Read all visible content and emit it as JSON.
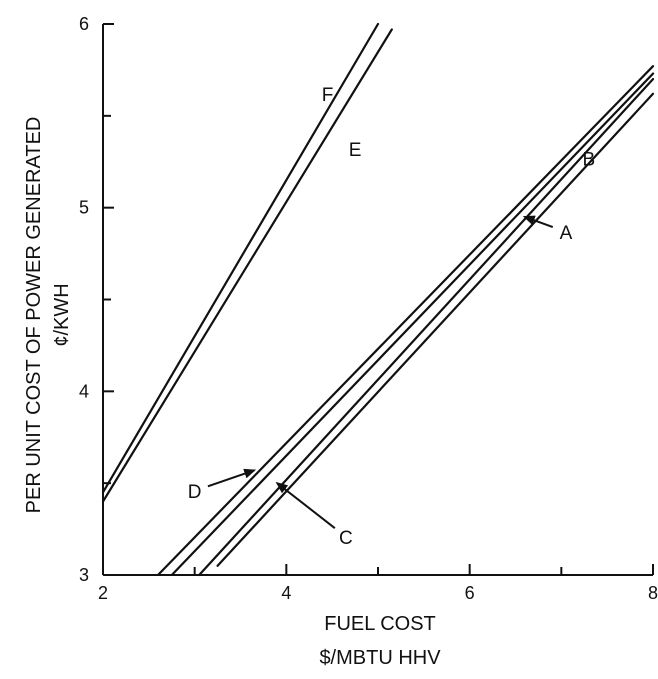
{
  "chart_data": {
    "type": "line",
    "xlabel": [
      "FUEL COST",
      "$/MBTU HHV"
    ],
    "ylabel": [
      "PER UNIT COST OF POWER GENERATED",
      "¢/KWH"
    ],
    "xlim": [
      2,
      8
    ],
    "ylim": [
      3,
      6
    ],
    "xticks": [
      2,
      4,
      6,
      8
    ],
    "yticks": [
      3,
      4,
      5,
      6
    ],
    "grid": false,
    "series": [
      {
        "name": "F",
        "x": [
          2.0,
          5.0
        ],
        "y": [
          3.45,
          6.0
        ]
      },
      {
        "name": "E",
        "x": [
          2.0,
          5.15
        ],
        "y": [
          3.4,
          5.97
        ]
      },
      {
        "name": "D",
        "x": [
          2.6,
          8.0
        ],
        "y": [
          3.0,
          5.77
        ]
      },
      {
        "name": "C",
        "x": [
          2.75,
          8.0
        ],
        "y": [
          3.0,
          5.73
        ]
      },
      {
        "name": "A",
        "x": [
          3.05,
          8.0
        ],
        "y": [
          3.0,
          5.7
        ]
      },
      {
        "name": "B",
        "x": [
          3.25,
          8.0
        ],
        "y": [
          3.05,
          5.62
        ]
      }
    ],
    "labels": [
      {
        "text": "F",
        "x": 4.45,
        "y": 5.58
      },
      {
        "text": "E",
        "x": 4.75,
        "y": 5.28
      },
      {
        "text": "B",
        "x": 7.3,
        "y": 5.23
      },
      {
        "text": "A",
        "x": 7.05,
        "y": 4.83,
        "arrow_to": [
          6.6,
          4.95
        ]
      },
      {
        "text": "D",
        "x": 3.0,
        "y": 3.42,
        "arrow_to": [
          3.65,
          3.57
        ]
      },
      {
        "text": "C",
        "x": 4.65,
        "y": 3.17,
        "arrow_to": [
          3.9,
          3.5
        ]
      }
    ]
  }
}
